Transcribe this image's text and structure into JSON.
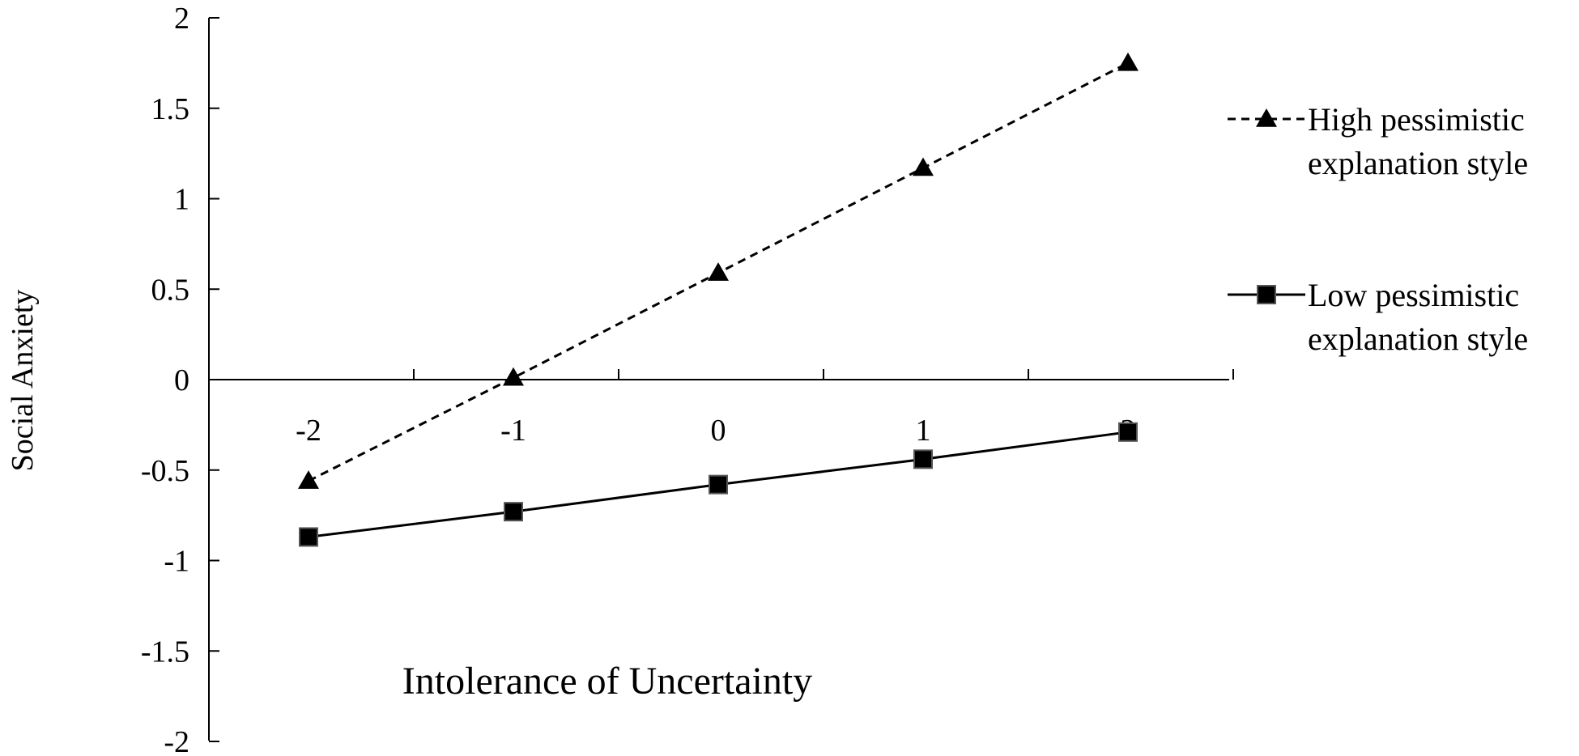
{
  "chart_data": {
    "type": "line",
    "title": "",
    "xlabel": "Intolerance of Uncertainty",
    "ylabel": "Social Anxiety",
    "x": [
      -2,
      -1,
      0,
      1,
      2
    ],
    "x_ticks": [
      "-2",
      "-1",
      "0",
      "1",
      "2"
    ],
    "y_ticks": [
      "2",
      "1.5",
      "1",
      "0.5",
      "0",
      "-0.5",
      "-1",
      "-1.5",
      "-2"
    ],
    "ylim": [
      -2,
      2
    ],
    "xlim": [
      -2.5,
      2.5
    ],
    "grid": false,
    "legend_position": "right",
    "series": [
      {
        "name_lines": [
          "High pessimistic",
          "explanation style"
        ],
        "values": [
          -0.56,
          0.01,
          0.59,
          1.17,
          1.75
        ],
        "line_style": "dashed",
        "marker": "triangle",
        "color": "#000000"
      },
      {
        "name_lines": [
          "Low pessimistic",
          "explanation style"
        ],
        "values": [
          -0.87,
          -0.73,
          -0.58,
          -0.44,
          -0.29
        ],
        "line_style": "solid",
        "marker": "square",
        "color": "#000000"
      }
    ]
  }
}
